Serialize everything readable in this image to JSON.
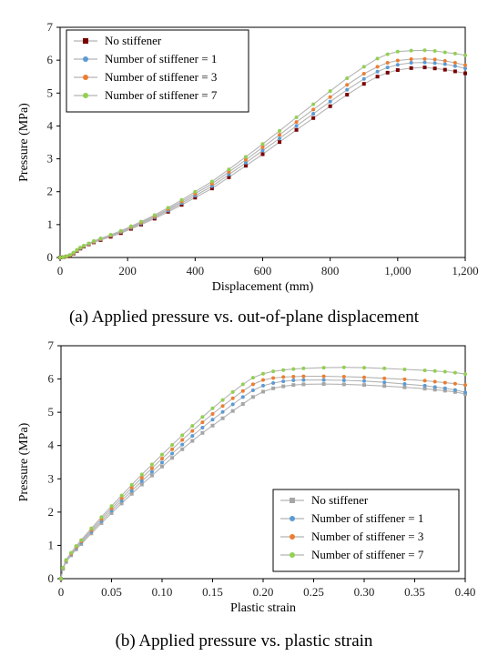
{
  "colors": {
    "no_stiffener_a": "#7a0000",
    "no_stiffener_b": "#a6a6a6",
    "stiffener_1": "#5b9bd5",
    "stiffener_3": "#ed7d31",
    "stiffener_7": "#92d050",
    "line_gray": "#b4b4b4"
  },
  "chart_data": [
    {
      "type": "line",
      "caption": "(a) Applied pressure vs. out-of-plane displacement",
      "xlabel": "Displacement (mm)",
      "ylabel": "Pressure (MPa)",
      "xlim": [
        0,
        1200
      ],
      "ylim": [
        0,
        7
      ],
      "xticks": [
        0,
        200,
        400,
        600,
        800,
        1000,
        1200
      ],
      "xtick_labels": [
        "0",
        "200",
        "400",
        "600",
        "800",
        "1,000",
        "1,200"
      ],
      "yticks": [
        0,
        1,
        2,
        3,
        4,
        5,
        6,
        7
      ],
      "ytick_labels": [
        "0",
        "1",
        "2",
        "3",
        "4",
        "5",
        "6",
        "7"
      ],
      "legend_position": "top-left",
      "series": [
        {
          "name": "No stiffener",
          "color_key": "no_stiffener_a",
          "marker": "square",
          "x": [
            0,
            10,
            20,
            30,
            40,
            50,
            60,
            70,
            85,
            100,
            120,
            150,
            180,
            210,
            240,
            280,
            320,
            360,
            400,
            450,
            500,
            550,
            600,
            650,
            700,
            750,
            800,
            850,
            900,
            940,
            970,
            1000,
            1040,
            1080,
            1110,
            1140,
            1170,
            1200
          ],
          "y": [
            0,
            0.01,
            0.03,
            0.06,
            0.12,
            0.2,
            0.27,
            0.33,
            0.4,
            0.46,
            0.53,
            0.63,
            0.74,
            0.87,
            1.0,
            1.18,
            1.39,
            1.6,
            1.82,
            2.1,
            2.44,
            2.79,
            3.14,
            3.51,
            3.88,
            4.24,
            4.6,
            4.95,
            5.28,
            5.5,
            5.62,
            5.7,
            5.76,
            5.78,
            5.75,
            5.71,
            5.66,
            5.6
          ]
        },
        {
          "name": "Number of stiffener = 1",
          "color_key": "stiffener_1",
          "marker": "circle",
          "x": [
            0,
            10,
            20,
            30,
            40,
            50,
            60,
            70,
            85,
            100,
            120,
            150,
            180,
            210,
            240,
            280,
            320,
            360,
            400,
            450,
            500,
            550,
            600,
            650,
            700,
            750,
            800,
            850,
            900,
            940,
            970,
            1000,
            1040,
            1080,
            1110,
            1140,
            1170,
            1200
          ],
          "y": [
            0,
            0.01,
            0.03,
            0.07,
            0.13,
            0.21,
            0.28,
            0.34,
            0.41,
            0.47,
            0.55,
            0.66,
            0.77,
            0.9,
            1.03,
            1.22,
            1.43,
            1.65,
            1.88,
            2.17,
            2.52,
            2.88,
            3.25,
            3.62,
            4.0,
            4.37,
            4.74,
            5.1,
            5.43,
            5.65,
            5.78,
            5.86,
            5.92,
            5.93,
            5.91,
            5.88,
            5.82,
            5.75
          ]
        },
        {
          "name": "Number of stiffener = 3",
          "color_key": "stiffener_3",
          "marker": "circle",
          "x": [
            0,
            10,
            20,
            30,
            40,
            50,
            60,
            70,
            85,
            100,
            120,
            150,
            180,
            210,
            240,
            280,
            320,
            360,
            400,
            450,
            500,
            550,
            600,
            650,
            700,
            750,
            800,
            850,
            900,
            940,
            970,
            1000,
            1040,
            1080,
            1110,
            1140,
            1170,
            1200
          ],
          "y": [
            0,
            0.01,
            0.03,
            0.07,
            0.14,
            0.22,
            0.29,
            0.35,
            0.42,
            0.48,
            0.56,
            0.67,
            0.79,
            0.92,
            1.06,
            1.25,
            1.47,
            1.7,
            1.94,
            2.24,
            2.6,
            2.97,
            3.35,
            3.73,
            4.12,
            4.5,
            4.88,
            5.25,
            5.59,
            5.8,
            5.92,
            5.99,
            6.03,
            6.04,
            6.02,
            5.98,
            5.92,
            5.85
          ]
        },
        {
          "name": "Number of stiffener = 7",
          "color_key": "stiffener_7",
          "marker": "circle",
          "x": [
            0,
            10,
            20,
            30,
            40,
            50,
            60,
            70,
            85,
            100,
            120,
            150,
            180,
            210,
            240,
            280,
            320,
            360,
            400,
            450,
            500,
            550,
            600,
            650,
            700,
            750,
            800,
            850,
            900,
            940,
            970,
            1000,
            1040,
            1080,
            1110,
            1140,
            1170,
            1200
          ],
          "y": [
            0,
            0.01,
            0.04,
            0.08,
            0.15,
            0.23,
            0.3,
            0.36,
            0.43,
            0.5,
            0.58,
            0.69,
            0.81,
            0.95,
            1.09,
            1.29,
            1.51,
            1.75,
            2.0,
            2.31,
            2.68,
            3.06,
            3.45,
            3.85,
            4.26,
            4.66,
            5.06,
            5.45,
            5.8,
            6.05,
            6.18,
            6.26,
            6.29,
            6.3,
            6.28,
            6.24,
            6.2,
            6.15
          ]
        }
      ]
    },
    {
      "type": "line",
      "caption": "(b) Applied pressure vs. plastic strain",
      "xlabel": "Plastic strain",
      "ylabel": "Pressure (MPa)",
      "xlim": [
        0,
        0.4
      ],
      "ylim": [
        0,
        7
      ],
      "xticks": [
        0,
        0.05,
        0.1,
        0.15,
        0.2,
        0.25,
        0.3,
        0.35,
        0.4
      ],
      "xtick_labels": [
        "0",
        "0.05",
        "0.10",
        "0.15",
        "0.20",
        "0.25",
        "0.30",
        "0.35",
        "0.40"
      ],
      "yticks": [
        0,
        1,
        2,
        3,
        4,
        5,
        6,
        7
      ],
      "ytick_labels": [
        "0",
        "1",
        "2",
        "3",
        "4",
        "5",
        "6",
        "7"
      ],
      "legend_position": "bottom-right",
      "series": [
        {
          "name": "No stiffener",
          "color_key": "no_stiffener_b",
          "marker": "square",
          "x": [
            0,
            0.002,
            0.005,
            0.01,
            0.015,
            0.02,
            0.03,
            0.04,
            0.05,
            0.06,
            0.07,
            0.08,
            0.09,
            0.1,
            0.11,
            0.12,
            0.13,
            0.14,
            0.15,
            0.16,
            0.17,
            0.18,
            0.19,
            0.2,
            0.21,
            0.22,
            0.23,
            0.24,
            0.26,
            0.28,
            0.3,
            0.32,
            0.34,
            0.36,
            0.37,
            0.38,
            0.39,
            0.4
          ],
          "y": [
            0,
            0.3,
            0.5,
            0.7,
            0.88,
            1.04,
            1.36,
            1.67,
            1.97,
            2.26,
            2.55,
            2.83,
            3.1,
            3.37,
            3.63,
            3.89,
            4.14,
            4.38,
            4.6,
            4.82,
            5.04,
            5.25,
            5.46,
            5.62,
            5.72,
            5.78,
            5.82,
            5.84,
            5.85,
            5.84,
            5.82,
            5.79,
            5.75,
            5.71,
            5.68,
            5.65,
            5.61,
            5.55
          ]
        },
        {
          "name": "Number of stiffener = 1",
          "color_key": "stiffener_1",
          "marker": "circle",
          "x": [
            0,
            0.002,
            0.005,
            0.01,
            0.015,
            0.02,
            0.03,
            0.04,
            0.05,
            0.06,
            0.07,
            0.08,
            0.09,
            0.1,
            0.11,
            0.12,
            0.13,
            0.14,
            0.15,
            0.16,
            0.17,
            0.18,
            0.19,
            0.2,
            0.21,
            0.22,
            0.23,
            0.24,
            0.26,
            0.28,
            0.3,
            0.32,
            0.34,
            0.36,
            0.37,
            0.38,
            0.39,
            0.4
          ],
          "y": [
            0,
            0.31,
            0.52,
            0.73,
            0.92,
            1.08,
            1.41,
            1.73,
            2.04,
            2.34,
            2.64,
            2.93,
            3.21,
            3.49,
            3.76,
            4.03,
            4.29,
            4.54,
            4.78,
            5.01,
            5.24,
            5.46,
            5.66,
            5.8,
            5.88,
            5.93,
            5.96,
            5.97,
            5.97,
            5.96,
            5.94,
            5.9,
            5.85,
            5.8,
            5.76,
            5.72,
            5.67,
            5.6
          ]
        },
        {
          "name": "Number of stiffener = 3",
          "color_key": "stiffener_3",
          "marker": "circle",
          "x": [
            0,
            0.002,
            0.005,
            0.01,
            0.015,
            0.02,
            0.03,
            0.04,
            0.05,
            0.06,
            0.07,
            0.08,
            0.09,
            0.1,
            0.11,
            0.12,
            0.13,
            0.14,
            0.15,
            0.16,
            0.17,
            0.18,
            0.19,
            0.2,
            0.21,
            0.22,
            0.23,
            0.24,
            0.26,
            0.28,
            0.3,
            0.32,
            0.34,
            0.36,
            0.37,
            0.38,
            0.39,
            0.4
          ],
          "y": [
            0,
            0.32,
            0.54,
            0.75,
            0.95,
            1.12,
            1.46,
            1.79,
            2.11,
            2.42,
            2.73,
            3.03,
            3.32,
            3.61,
            3.89,
            4.17,
            4.44,
            4.7,
            4.95,
            5.19,
            5.42,
            5.64,
            5.84,
            5.97,
            6.03,
            6.06,
            6.07,
            6.08,
            6.08,
            6.07,
            6.05,
            6.02,
            5.99,
            5.95,
            5.92,
            5.89,
            5.86,
            5.82
          ]
        },
        {
          "name": "Number of stiffener = 7",
          "color_key": "stiffener_7",
          "marker": "circle",
          "x": [
            0,
            0.002,
            0.005,
            0.01,
            0.015,
            0.02,
            0.03,
            0.04,
            0.05,
            0.06,
            0.07,
            0.08,
            0.09,
            0.1,
            0.11,
            0.12,
            0.13,
            0.14,
            0.15,
            0.16,
            0.17,
            0.18,
            0.19,
            0.2,
            0.21,
            0.22,
            0.23,
            0.24,
            0.26,
            0.28,
            0.3,
            0.32,
            0.34,
            0.36,
            0.37,
            0.38,
            0.39,
            0.4
          ],
          "y": [
            0,
            0.33,
            0.56,
            0.78,
            0.98,
            1.16,
            1.51,
            1.85,
            2.18,
            2.5,
            2.82,
            3.13,
            3.43,
            3.73,
            4.02,
            4.31,
            4.59,
            4.86,
            5.12,
            5.37,
            5.61,
            5.84,
            6.04,
            6.16,
            6.23,
            6.27,
            6.3,
            6.32,
            6.34,
            6.35,
            6.34,
            6.32,
            6.29,
            6.26,
            6.24,
            6.22,
            6.19,
            6.15
          ]
        }
      ]
    }
  ]
}
